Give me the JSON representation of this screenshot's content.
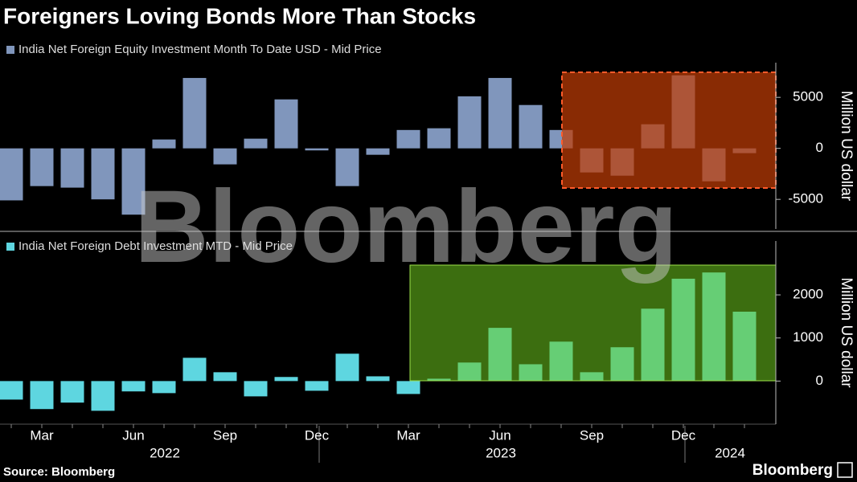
{
  "title": "Foreigners Loving Bonds More Than Stocks",
  "source": "Source: Bloomberg",
  "logo": "Bloomberg",
  "watermark": "Bloomberg",
  "chart_data": [
    {
      "type": "bar",
      "series": [
        {
          "name": "India Net Foreign Equity Investment Month To Date USD - Mid Price",
          "color": "#8096bc",
          "values": [
            -5100,
            -3700,
            -3850,
            -5000,
            -6500,
            870,
            6900,
            -1570,
            950,
            4800,
            -200,
            -3700,
            -630,
            1800,
            1970,
            5100,
            6900,
            4250,
            1800,
            -2360,
            -2680,
            2360,
            7160,
            -3230,
            -470
          ]
        }
      ],
      "y_label": "Million US dollar",
      "ylim": [
        -7900,
        8400
      ],
      "yticks": [
        5000,
        0,
        -5000
      ]
    },
    {
      "type": "bar",
      "series": [
        {
          "name": "India Net Foreign Debt Investment MTD - Mid Price",
          "color": "#5ed6e0",
          "values": [
            -430,
            -650,
            -500,
            -690,
            -240,
            -280,
            540,
            205,
            -355,
            95,
            -225,
            635,
            110,
            -300,
            55,
            430,
            1235,
            390,
            915,
            205,
            785,
            1680,
            2375,
            2520,
            1610
          ]
        }
      ],
      "y_label": "Million US dollar",
      "ylim": [
        -1000,
        3250
      ],
      "yticks": [
        2000,
        1000,
        0
      ],
      "categories": [
        null,
        "Mar",
        null,
        null,
        "Jun",
        null,
        null,
        "Sep",
        null,
        null,
        "Dec",
        null,
        null,
        "Mar",
        null,
        null,
        "Jun",
        null,
        null,
        "Sep",
        null,
        null,
        "Dec",
        null,
        null
      ],
      "years": [
        "2022",
        "2023",
        "2024"
      ]
    }
  ]
}
